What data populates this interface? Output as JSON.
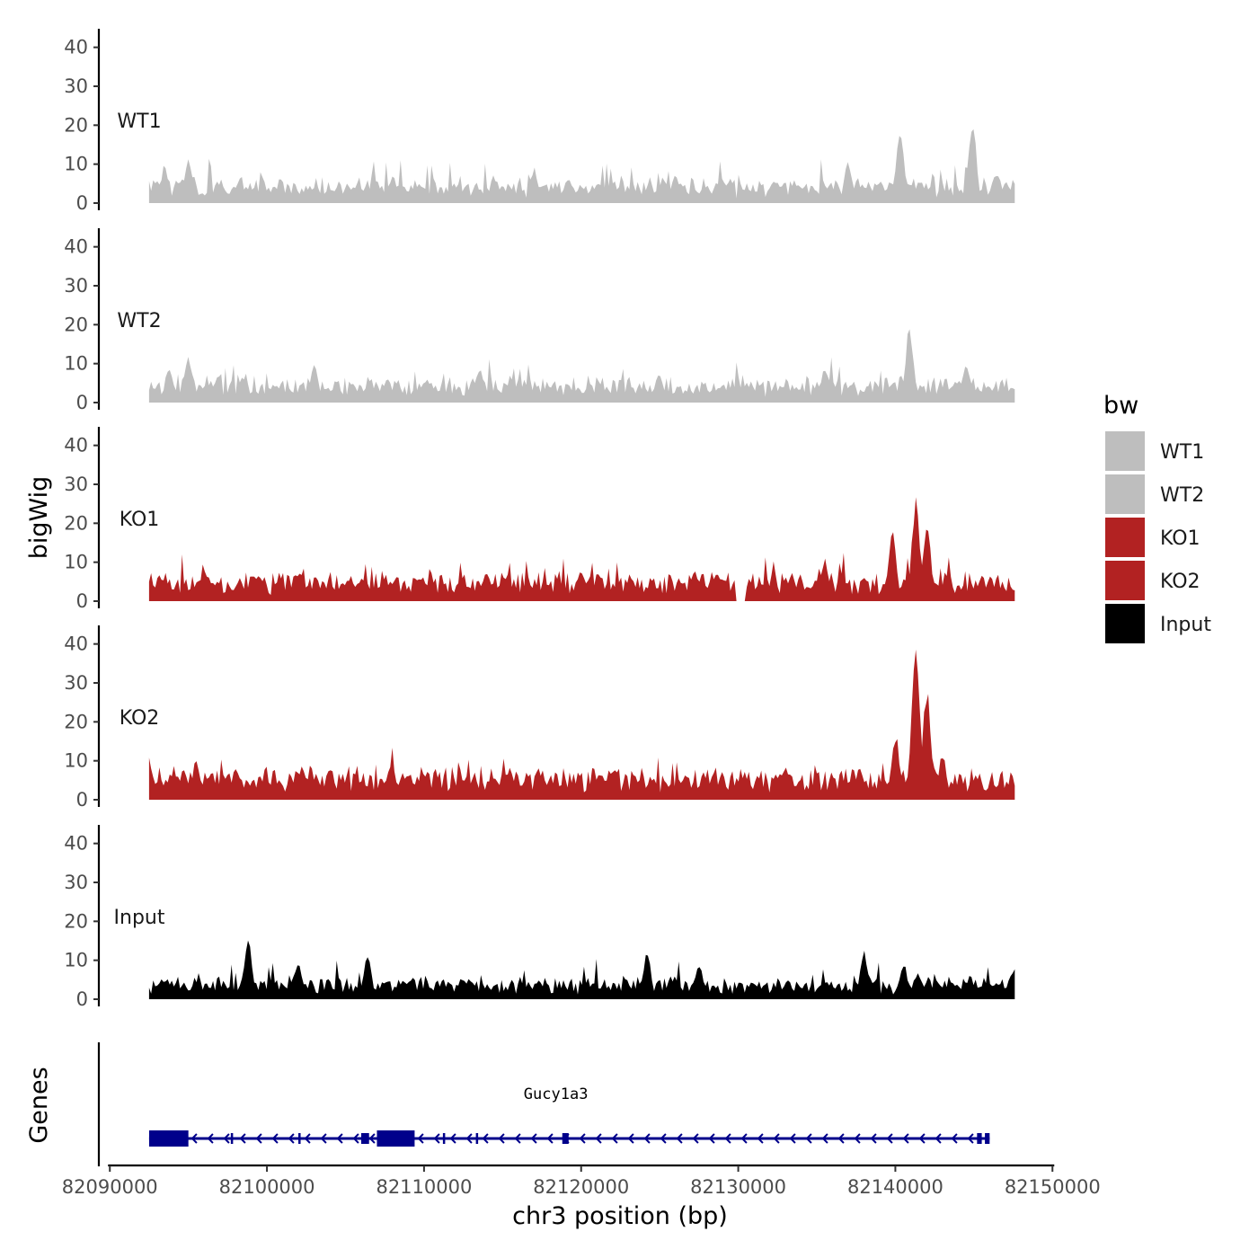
{
  "chart_data": {
    "type": "area",
    "chromosome": "chr3",
    "x_axis": {
      "label": "chr3 position (bp)",
      "range": [
        82089300,
        82150500
      ],
      "ticks": [
        82090000,
        82100000,
        82110000,
        82120000,
        82130000,
        82140000,
        82150000
      ],
      "tick_labels": [
        "82090000",
        "82100000",
        "82110000",
        "82120000",
        "82130000",
        "82140000",
        "82150000"
      ]
    },
    "y_axis": {
      "label": "bigWig",
      "range": [
        0,
        42
      ],
      "ticks": [
        0,
        10,
        20,
        30,
        40
      ],
      "tick_labels": [
        "0",
        "10",
        "20",
        "30",
        "40"
      ]
    },
    "data_range": [
      82092500,
      82147600
    ],
    "legend": {
      "title": "bw",
      "position": "right",
      "items": [
        {
          "label": "WT1",
          "color": "#bebebe"
        },
        {
          "label": "WT2",
          "color": "#bebebe"
        },
        {
          "label": "KO1",
          "color": "#b22222"
        },
        {
          "label": "KO2",
          "color": "#b22222"
        },
        {
          "label": "Input",
          "color": "#000000"
        }
      ]
    },
    "series": [
      {
        "name": "WT1",
        "color": "#bebebe",
        "baseline": 3.5,
        "noise": 4.5,
        "peaks": [
          [
            82093500,
            9
          ],
          [
            82095000,
            12
          ],
          [
            82108000,
            7
          ],
          [
            82117000,
            9
          ],
          [
            82126000,
            7
          ],
          [
            82137000,
            11
          ],
          [
            82140300,
            18
          ],
          [
            82144900,
            21
          ],
          [
            82146500,
            8
          ]
        ]
      },
      {
        "name": "WT2",
        "color": "#bebebe",
        "baseline": 3.5,
        "noise": 4.5,
        "peaks": [
          [
            82093800,
            9
          ],
          [
            82095000,
            12
          ],
          [
            82103000,
            10
          ],
          [
            82113500,
            9
          ],
          [
            82125000,
            7
          ],
          [
            82135500,
            9
          ],
          [
            82140900,
            19
          ],
          [
            82144500,
            10
          ]
        ]
      },
      {
        "name": "KO1",
        "color": "#b22222",
        "baseline": 4,
        "noise": 4.5,
        "peaks": [
          [
            82096000,
            9
          ],
          [
            82102000,
            7
          ],
          [
            82114000,
            8
          ],
          [
            82120000,
            8
          ],
          [
            82135500,
            11
          ],
          [
            82139800,
            18
          ],
          [
            82141300,
            26
          ],
          [
            82142000,
            20
          ],
          [
            82145500,
            7
          ]
        ],
        "gaps": [
          [
            82129800,
            82130500
          ]
        ]
      },
      {
        "name": "KO2",
        "color": "#b22222",
        "baseline": 4.5,
        "noise": 5,
        "peaks": [
          [
            82095500,
            10
          ],
          [
            82098000,
            8
          ],
          [
            82104000,
            9
          ],
          [
            82108000,
            8
          ],
          [
            82115500,
            8
          ],
          [
            82122000,
            8
          ],
          [
            82133000,
            9
          ],
          [
            82140000,
            17
          ],
          [
            82141300,
            40
          ],
          [
            82142000,
            28
          ],
          [
            82143000,
            12
          ]
        ]
      },
      {
        "name": "Input",
        "color": "#000000",
        "baseline": 3,
        "noise": 4,
        "peaks": [
          [
            82098800,
            15
          ],
          [
            82102000,
            9
          ],
          [
            82106400,
            12
          ],
          [
            82124200,
            12
          ],
          [
            82127500,
            9
          ],
          [
            82138000,
            12
          ],
          [
            82140500,
            9
          ],
          [
            82147400,
            7
          ]
        ]
      }
    ],
    "genes_track": {
      "label": "Genes",
      "gene_name": "Gucy1a3",
      "strand": "-",
      "start": 82092500,
      "end": 82146000,
      "color": "#00008b",
      "exons": [
        [
          82092500,
          82095000
        ],
        [
          82097700,
          82097800
        ],
        [
          82102000,
          82102100
        ],
        [
          82106000,
          82106500
        ],
        [
          82107000,
          82109400
        ],
        [
          82111200,
          82111300
        ],
        [
          82113300,
          82113400
        ],
        [
          82118800,
          82119200
        ],
        [
          82145200,
          82145500
        ],
        [
          82145700,
          82146000
        ]
      ]
    }
  }
}
